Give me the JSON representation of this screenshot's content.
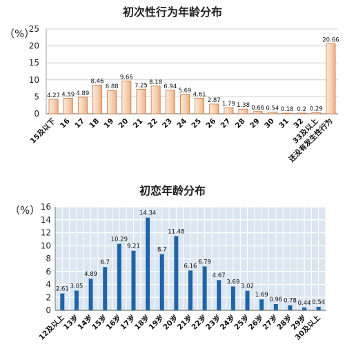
{
  "chart_data": [
    {
      "type": "bar",
      "title": "初次性行为年龄分布",
      "unit_label": "（%）",
      "ylim": [
        0,
        25
      ],
      "yticks": [
        0,
        5,
        10,
        15,
        20,
        25
      ],
      "grid": true,
      "categories": [
        "15及以下",
        "16",
        "17",
        "18",
        "19",
        "20",
        "21",
        "22",
        "23",
        "24",
        "25",
        "26",
        "27",
        "28",
        "29",
        "30",
        "31",
        "32",
        "33及以上",
        "还没有发生性行为"
      ],
      "values": [
        4.27,
        4.59,
        4.89,
        8.46,
        6.88,
        9.66,
        7.25,
        8.18,
        6.94,
        5.69,
        4.61,
        2.87,
        1.79,
        1.38,
        0.66,
        0.54,
        0.18,
        0.2,
        0.29,
        20.66
      ],
      "value_labels": [
        "4.27",
        "4.59",
        "4.89",
        "8.46",
        "6.88",
        "9.66",
        "7.25",
        "8.18",
        "6.94",
        "5.69",
        "4.61",
        "2.87",
        "1.79",
        "1.38",
        "0.66",
        "0.54",
        "0.18",
        "0.2",
        "0.29",
        "20.66"
      ],
      "colors": {
        "bar_fill": "#f7d3b4",
        "bar_edge": "#c8733a",
        "grid": "#cccccc"
      }
    },
    {
      "type": "bar",
      "title": "初恋年龄分布",
      "unit_label": "（%）",
      "ylim": [
        0,
        16
      ],
      "yticks": [
        0,
        2,
        4,
        6,
        8,
        10,
        12,
        14,
        16
      ],
      "grid": true,
      "categories": [
        "12及以上",
        "13岁",
        "14岁",
        "15岁",
        "16岁",
        "17岁",
        "18岁",
        "19岁",
        "20岁",
        "21岁",
        "22岁",
        "23岁",
        "24岁",
        "25岁",
        "26岁",
        "27岁",
        "28岁",
        "29岁",
        "30及以上"
      ],
      "values": [
        2.61,
        3.05,
        4.89,
        6.7,
        10.29,
        9.21,
        14.34,
        8.7,
        11.48,
        6.16,
        6.79,
        4.67,
        3.69,
        3.02,
        1.69,
        0.96,
        0.78,
        0.44,
        0.54
      ],
      "value_labels": [
        "2.61",
        "3.05",
        "4.89",
        "6.7",
        "10.29",
        "9.21",
        "14.34",
        "8.7",
        "11.48",
        "6.16",
        "6.79",
        "4.67",
        "3.69",
        "3.02",
        "1.69",
        "0.96",
        "0.78",
        "0.44",
        "0.54"
      ],
      "colors": {
        "bar_fill": "#1e64a8",
        "background": "#dbe6f1",
        "grid": "#ffffff"
      }
    }
  ]
}
